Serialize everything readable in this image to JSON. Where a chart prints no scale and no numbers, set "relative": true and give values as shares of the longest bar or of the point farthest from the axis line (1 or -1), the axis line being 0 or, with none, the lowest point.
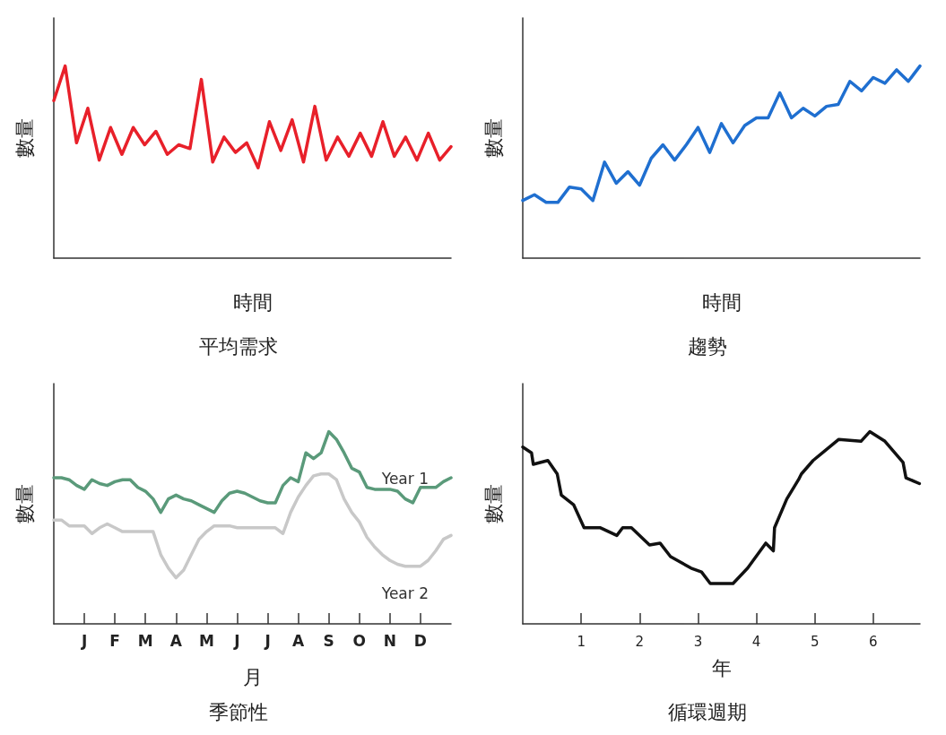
{
  "chart_data": [
    {
      "type": "line",
      "title": "平均需求",
      "xlabel": "時間",
      "ylabel": "數量",
      "relative": true,
      "grid": false,
      "marker": "none",
      "line_style": "solid",
      "categories": [
        null,
        null,
        null,
        null,
        null,
        null,
        null,
        null,
        null,
        null,
        null,
        null,
        null,
        null,
        null,
        null,
        null,
        null,
        null,
        null,
        null,
        null,
        null,
        null,
        null,
        null,
        null,
        null,
        null,
        null,
        null,
        null,
        null,
        null,
        null,
        null
      ],
      "series": [
        {
          "color": "#e8202a",
          "values": [
            0.82,
            1.0,
            0.6,
            0.78,
            0.51,
            0.68,
            0.54,
            0.68,
            0.59,
            0.66,
            0.54,
            0.59,
            0.57,
            0.93,
            0.5,
            0.63,
            0.55,
            0.6,
            0.47,
            0.71,
            0.56,
            0.72,
            0.5,
            0.79,
            0.51,
            0.63,
            0.53,
            0.65,
            0.53,
            0.71,
            0.53,
            0.63,
            0.51,
            0.65,
            0.51,
            0.58
          ]
        }
      ]
    },
    {
      "type": "line",
      "title": "趨勢",
      "xlabel": "時間",
      "ylabel": "數量",
      "relative": true,
      "grid": false,
      "marker": "none",
      "line_style": "solid",
      "categories": [
        null,
        null,
        null,
        null,
        null,
        null,
        null,
        null,
        null,
        null,
        null,
        null,
        null,
        null,
        null,
        null,
        null,
        null,
        null,
        null,
        null,
        null,
        null,
        null,
        null,
        null,
        null,
        null,
        null,
        null,
        null,
        null,
        null,
        null,
        null
      ],
      "series": [
        {
          "color": "#1f6fd0",
          "values": [
            0.3,
            0.33,
            0.29,
            0.29,
            0.37,
            0.36,
            0.3,
            0.5,
            0.39,
            0.45,
            0.38,
            0.52,
            0.59,
            0.51,
            0.59,
            0.68,
            0.55,
            0.7,
            0.6,
            0.69,
            0.73,
            0.73,
            0.86,
            0.73,
            0.78,
            0.74,
            0.79,
            0.8,
            0.92,
            0.87,
            0.94,
            0.91,
            0.98,
            0.92,
            1.0
          ]
        }
      ]
    },
    {
      "type": "line",
      "title": "季節性",
      "xlabel": "月",
      "ylabel": "數量",
      "relative": true,
      "grid": false,
      "marker": "none",
      "line_style": "solid",
      "categories": [
        null,
        null,
        null,
        null,
        "J",
        null,
        null,
        null,
        "F",
        null,
        null,
        null,
        "M",
        null,
        null,
        null,
        "A",
        null,
        null,
        null,
        "M",
        null,
        null,
        null,
        "J",
        null,
        null,
        null,
        "J",
        null,
        null,
        null,
        "A",
        null,
        null,
        null,
        "S",
        null,
        null,
        null,
        "O",
        null,
        null,
        null,
        "N",
        null,
        null,
        null,
        "D",
        null,
        null,
        null,
        null
      ],
      "series": [
        {
          "name": "Year 1",
          "color": "#5a9a7a",
          "values": [
            0.76,
            0.76,
            0.75,
            0.72,
            0.7,
            0.75,
            0.73,
            0.72,
            0.74,
            0.75,
            0.75,
            0.71,
            0.69,
            0.65,
            0.58,
            0.65,
            0.67,
            0.65,
            0.64,
            0.62,
            0.6,
            0.58,
            0.64,
            0.68,
            0.69,
            0.68,
            0.66,
            0.64,
            0.63,
            0.63,
            0.72,
            0.76,
            0.74,
            0.89,
            0.86,
            0.89,
            1.0,
            0.96,
            0.89,
            0.81,
            0.79,
            0.71,
            0.7,
            0.7,
            0.7,
            0.69,
            0.65,
            0.63,
            0.71,
            0.71,
            0.71,
            0.74,
            0.76
          ]
        },
        {
          "name": "Year 2",
          "color": "#c8c8c8",
          "values": [
            0.54,
            0.54,
            0.51,
            0.51,
            0.51,
            0.47,
            0.5,
            0.52,
            0.5,
            0.48,
            0.48,
            0.48,
            0.48,
            0.48,
            0.36,
            0.29,
            0.24,
            0.28,
            0.36,
            0.44,
            0.48,
            0.51,
            0.51,
            0.51,
            0.5,
            0.5,
            0.5,
            0.5,
            0.5,
            0.5,
            0.47,
            0.58,
            0.66,
            0.72,
            0.77,
            0.78,
            0.78,
            0.75,
            0.65,
            0.58,
            0.53,
            0.45,
            0.4,
            0.36,
            0.33,
            0.31,
            0.3,
            0.3,
            0.3,
            0.33,
            0.38,
            0.44,
            0.46
          ]
        }
      ]
    },
    {
      "type": "line",
      "title": "循環週期",
      "xlabel": "年",
      "ylabel": "數量",
      "relative": true,
      "grid": false,
      "marker": "none",
      "line_style": "solid",
      "xlim": [
        0,
        6.8
      ],
      "xticks": [
        1,
        2,
        3,
        4,
        5,
        6
      ],
      "series": [
        {
          "color": "#111111",
          "x": [
            0,
            0.15,
            0.18,
            0.43,
            0.59,
            0.66,
            0.87,
            1.05,
            1.33,
            1.61,
            1.71,
            1.86,
            2.17,
            2.35,
            2.53,
            2.88,
            3.06,
            3.21,
            3.6,
            3.85,
            4.16,
            4.29,
            4.31,
            4.52,
            4.72,
            4.77,
            4.97,
            5.41,
            5.79,
            5.94,
            6.2,
            6.51,
            6.56,
            6.79
          ],
          "values": [
            0.92,
            0.89,
            0.83,
            0.85,
            0.78,
            0.67,
            0.62,
            0.5,
            0.5,
            0.46,
            0.5,
            0.5,
            0.41,
            0.42,
            0.35,
            0.29,
            0.27,
            0.21,
            0.21,
            0.29,
            0.42,
            0.38,
            0.5,
            0.65,
            0.75,
            0.78,
            0.85,
            0.96,
            0.95,
            1.0,
            0.95,
            0.84,
            0.76,
            0.73
          ]
        }
      ]
    }
  ]
}
